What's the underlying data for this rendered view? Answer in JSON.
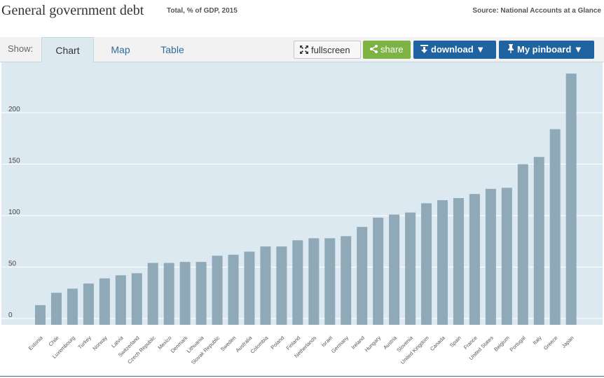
{
  "header": {
    "title": "General government debt",
    "subtitle": "Total, % of GDP, 2015",
    "source": "Source: National Accounts at a Glance"
  },
  "toolbar": {
    "show_label": "Show:",
    "tabs": [
      {
        "label": "Chart",
        "active": true
      },
      {
        "label": "Map",
        "active": false
      },
      {
        "label": "Table",
        "active": false
      }
    ],
    "fullscreen_label": "fullscreen",
    "share_label": "share",
    "download_label": "download ▼",
    "pinboard_label": "My pinboard ▼"
  },
  "icons": {
    "fullscreen": "fullscreen-icon",
    "share": "share-icon",
    "download": "download-icon",
    "pinboard": "pin-icon"
  },
  "colors": {
    "bar": "#8fa9b8",
    "plot_bg": "#dde9f1",
    "gridline": "#ffffff",
    "accent": "#1f63a0",
    "share": "#7cb342"
  },
  "chart_data": {
    "type": "bar",
    "title": "",
    "xlabel": "",
    "ylabel": "",
    "ylim": [
      0,
      240
    ],
    "yticks": [
      0,
      50,
      100,
      150,
      200
    ],
    "grid": true,
    "categories": [
      "Estonia",
      "Chile",
      "Luxembourg",
      "Turkey",
      "Norway",
      "Latvia",
      "Switzerland",
      "Czech Republic",
      "Mexico",
      "Denmark",
      "Lithuania",
      "Slovak Republic",
      "Sweden",
      "Australia",
      "Colombia",
      "Poland",
      "Finland",
      "Netherlands",
      "Israel",
      "Germany",
      "Ireland",
      "Hungary",
      "Austria",
      "Slovenia",
      "United Kingdom",
      "Canada",
      "Spain",
      "France",
      "United States",
      "Belgium",
      "Portugal",
      "Italy",
      "Greece",
      "Japan"
    ],
    "values": [
      13,
      25,
      29,
      34,
      39,
      42,
      44,
      54,
      54,
      55,
      55,
      61,
      62,
      65,
      70,
      70,
      76,
      78,
      78,
      80,
      89,
      98,
      101,
      103,
      112,
      115,
      117,
      121,
      126,
      127,
      150,
      157,
      184,
      238
    ]
  }
}
